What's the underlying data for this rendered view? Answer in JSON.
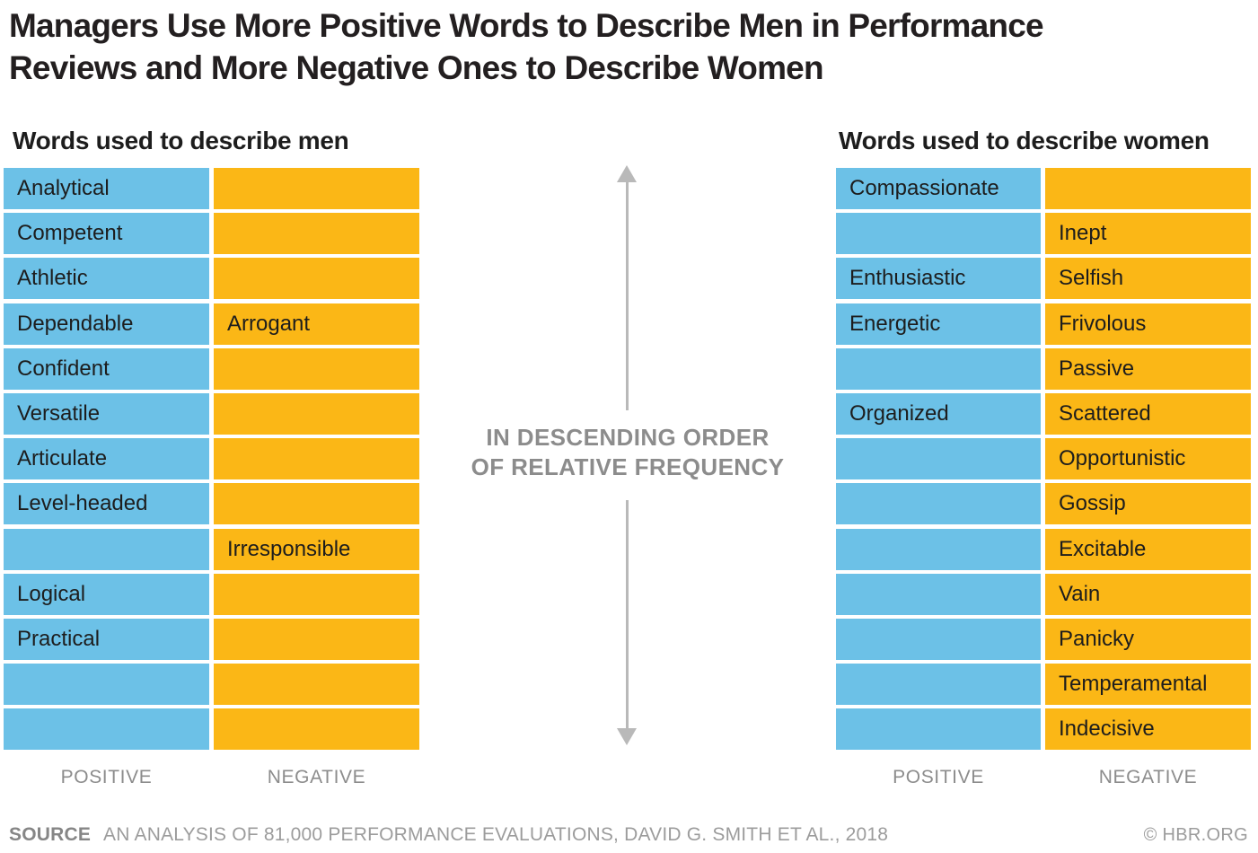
{
  "title": {
    "line1": "Managers Use More Positive Words to Describe Men in Performance",
    "line2": "Reviews and More Negative Ones to Describe Women"
  },
  "colors": {
    "positive": "#6CC1E7",
    "negative": "#FBB716",
    "title-text": "#231F20",
    "cell-text": "#1D1D1D",
    "muted": "#8C8C8C",
    "muted-light": "#9C9C9C",
    "arrow": "#B9B9B9"
  },
  "center_annotation": {
    "line1": "IN DESCENDING ORDER",
    "line2": "OF RELATIVE FREQUENCY"
  },
  "footer": {
    "source_label": "SOURCE",
    "source_text": "AN ANALYSIS OF 81,000 PERFORMANCE EVALUATIONS, DAVID G. SMITH ET AL., 2018",
    "credit": "© HBR.ORG"
  },
  "chart_data": {
    "type": "table",
    "title": "Managers Use More Positive Words to Describe Men in Performance Reviews and More Negative Ones to Describe Women",
    "ordering": "IN DESCENDING ORDER OF RELATIVE FREQUENCY",
    "tables": [
      {
        "title": "Words used to describe men",
        "columns": [
          "POSITIVE",
          "NEGATIVE"
        ],
        "rows": [
          {
            "positive": "Analytical",
            "negative": ""
          },
          {
            "positive": "Competent",
            "negative": ""
          },
          {
            "positive": "Athletic",
            "negative": ""
          },
          {
            "positive": "Dependable",
            "negative": "Arrogant"
          },
          {
            "positive": "Confident",
            "negative": ""
          },
          {
            "positive": "Versatile",
            "negative": ""
          },
          {
            "positive": "Articulate",
            "negative": ""
          },
          {
            "positive": "Level-headed",
            "negative": ""
          },
          {
            "positive": "",
            "negative": "Irresponsible"
          },
          {
            "positive": "Logical",
            "negative": ""
          },
          {
            "positive": "Practical",
            "negative": ""
          },
          {
            "positive": "",
            "negative": ""
          },
          {
            "positive": "",
            "negative": ""
          }
        ]
      },
      {
        "title": "Words used to describe women",
        "columns": [
          "POSITIVE",
          "NEGATIVE"
        ],
        "rows": [
          {
            "positive": "Compassionate",
            "negative": ""
          },
          {
            "positive": "",
            "negative": "Inept"
          },
          {
            "positive": "Enthusiastic",
            "negative": "Selfish"
          },
          {
            "positive": "Energetic",
            "negative": "Frivolous"
          },
          {
            "positive": "",
            "negative": "Passive"
          },
          {
            "positive": "Organized",
            "negative": "Scattered"
          },
          {
            "positive": "",
            "negative": "Opportunistic"
          },
          {
            "positive": "",
            "negative": "Gossip"
          },
          {
            "positive": "",
            "negative": "Excitable"
          },
          {
            "positive": "",
            "negative": "Vain"
          },
          {
            "positive": "",
            "negative": "Panicky"
          },
          {
            "positive": "",
            "negative": "Temperamental"
          },
          {
            "positive": "",
            "negative": "Indecisive"
          }
        ]
      }
    ]
  }
}
